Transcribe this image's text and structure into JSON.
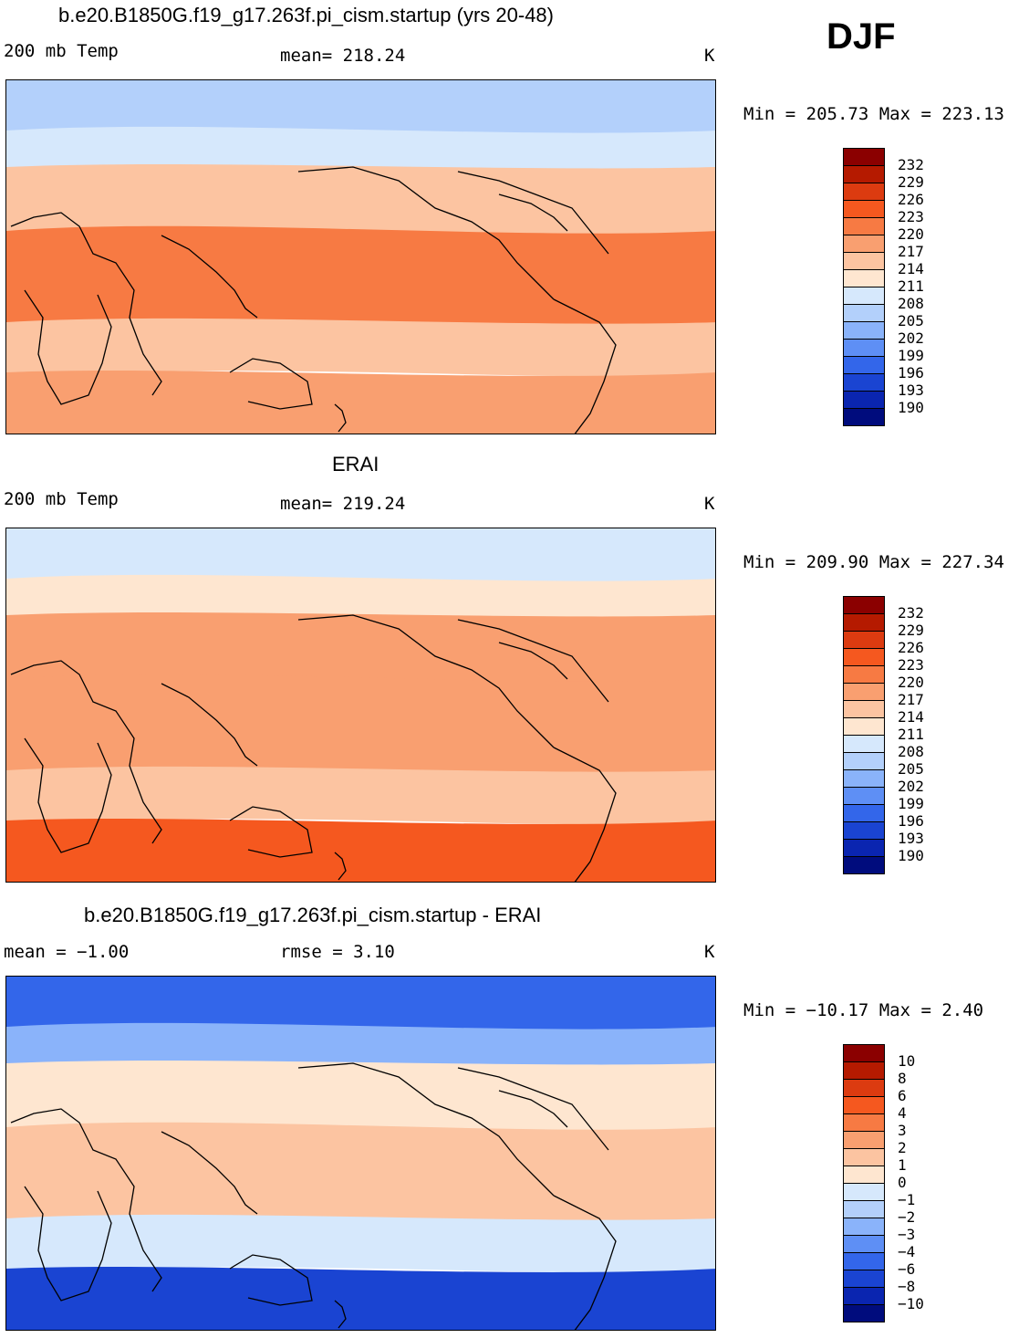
{
  "season": "DJF",
  "panels": [
    {
      "title": "b.e20.B1850G.f19_g17.263f.pi_cism.startup (yrs 20-48)",
      "left_label": "200 mb Temp",
      "center_label": "mean=  218.24",
      "units": "K",
      "minmax": "Min = 205.73 Max = 223.13",
      "levels": [
        "232",
        "229",
        "226",
        "223",
        "220",
        "217",
        "214",
        "211",
        "208",
        "205",
        "202",
        "199",
        "196",
        "193",
        "190"
      ],
      "colors": [
        "#8b0000",
        "#b51a00",
        "#dc3b10",
        "#f5581f",
        "#f77a43",
        "#f99f70",
        "#fcc4a1",
        "#fee6d0",
        "#d6e8fc",
        "#b3d0fb",
        "#8ab3fa",
        "#5e8ff5",
        "#3366ea",
        "#1a44d2",
        "#0a25b0",
        "#000c7d"
      ],
      "bands": [
        {
          "name": "polar-n",
          "color": "#b3d0fb"
        },
        {
          "name": "subpolar-n",
          "color": "#d6e8fc"
        },
        {
          "name": "mid-n",
          "color": "#fcc4a1"
        },
        {
          "name": "tropics",
          "color": "#f77a43"
        },
        {
          "name": "mid-s",
          "color": "#fcc4a1"
        },
        {
          "name": "subpolar-s",
          "color": "#f99f70"
        }
      ]
    },
    {
      "title": "ERAI",
      "left_label": "200 mb Temp",
      "center_label": "mean=  219.24",
      "units": "K",
      "minmax": "Min = 209.90 Max = 227.34",
      "levels": [
        "232",
        "229",
        "226",
        "223",
        "220",
        "217",
        "214",
        "211",
        "208",
        "205",
        "202",
        "199",
        "196",
        "193",
        "190"
      ],
      "colors": [
        "#8b0000",
        "#b51a00",
        "#dc3b10",
        "#f5581f",
        "#f77a43",
        "#f99f70",
        "#fcc4a1",
        "#fee6d0",
        "#d6e8fc",
        "#b3d0fb",
        "#8ab3fa",
        "#5e8ff5",
        "#3366ea",
        "#1a44d2",
        "#0a25b0",
        "#000c7d"
      ],
      "bands": [
        {
          "name": "polar-n",
          "color": "#d6e8fc"
        },
        {
          "name": "subpolar-n",
          "color": "#fee6d0"
        },
        {
          "name": "mid-n",
          "color": "#f99f70"
        },
        {
          "name": "tropics",
          "color": "#f99f70"
        },
        {
          "name": "mid-s",
          "color": "#fcc4a1"
        },
        {
          "name": "subpolar-s",
          "color": "#f5581f"
        }
      ]
    },
    {
      "title": "b.e20.B1850G.f19_g17.263f.pi_cism.startup - ERAI",
      "left_label": "mean =   −1.00",
      "center_label": "rmse =    3.10",
      "units": "K",
      "minmax": "Min = −10.17 Max =    2.40",
      "levels": [
        "10",
        "8",
        "6",
        "4",
        "3",
        "2",
        "1",
        "0",
        "−1",
        "−2",
        "−3",
        "−4",
        "−6",
        "−8",
        "−10"
      ],
      "colors": [
        "#8b0000",
        "#b51a00",
        "#dc3b10",
        "#f5581f",
        "#f77a43",
        "#f99f70",
        "#fcc4a1",
        "#fee6d0",
        "#d6e8fc",
        "#b3d0fb",
        "#8ab3fa",
        "#5e8ff5",
        "#3366ea",
        "#1a44d2",
        "#0a25b0",
        "#000c7d"
      ],
      "bands": [
        {
          "name": "polar-n",
          "color": "#3366ea"
        },
        {
          "name": "subpolar-n",
          "color": "#8ab3fa"
        },
        {
          "name": "mid-n",
          "color": "#fee6d0"
        },
        {
          "name": "tropics",
          "color": "#fcc4a1"
        },
        {
          "name": "mid-s",
          "color": "#d6e8fc"
        },
        {
          "name": "subpolar-s",
          "color": "#1a44d2"
        }
      ]
    }
  ]
}
